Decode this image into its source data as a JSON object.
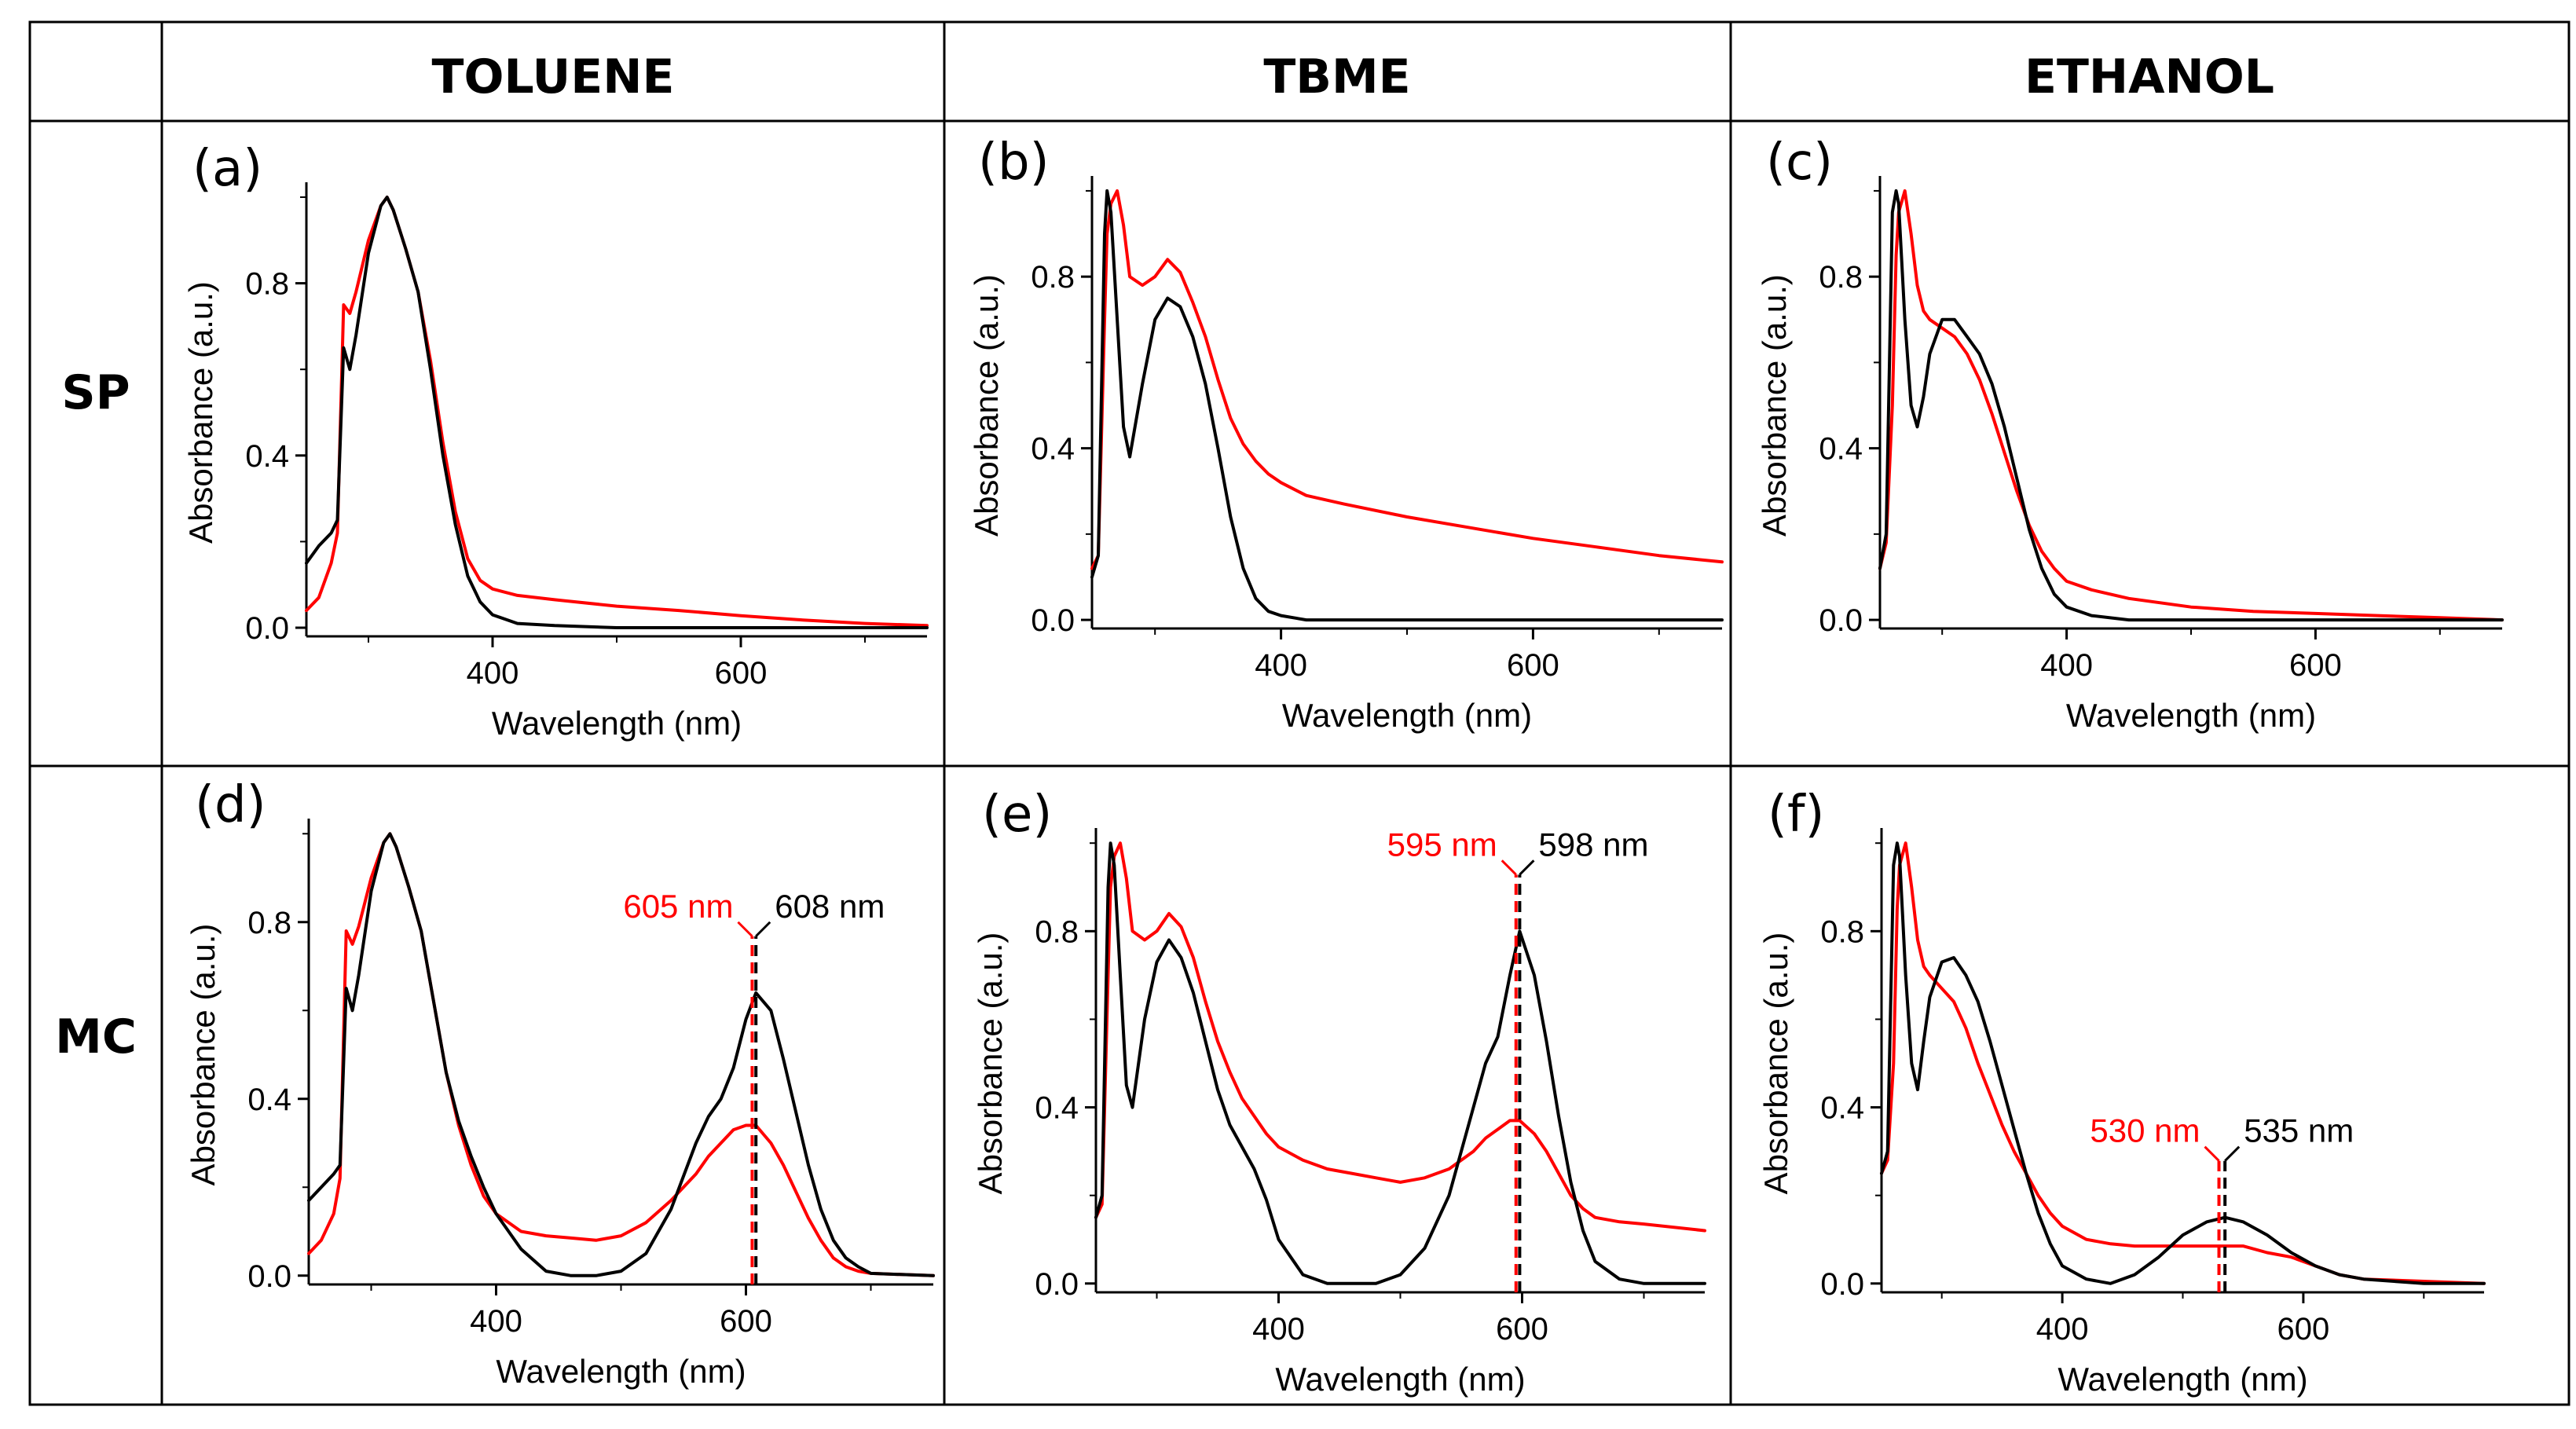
{
  "columns": [
    "TOLUENE",
    "TBME",
    "ETHANOL"
  ],
  "rows": [
    "SP",
    "MC"
  ],
  "colors": {
    "series_black": "#000000",
    "series_red": "#ff0000",
    "grid_line": "#000000"
  },
  "chart_data": [
    {
      "id": "a",
      "panel_label": "(a)",
      "type": "line",
      "xlabel": "Wavelength (nm)",
      "ylabel": "Absorbance (a.u.)",
      "xlim": [
        250,
        750
      ],
      "ylim": [
        -0.02,
        1.02
      ],
      "x_ticks": [
        "400",
        "600"
      ],
      "y_ticks": [
        "0.0",
        "0.4",
        "0.8"
      ],
      "x": [
        250,
        260,
        270,
        275,
        280,
        285,
        290,
        300,
        310,
        315,
        320,
        330,
        340,
        350,
        360,
        370,
        380,
        390,
        400,
        420,
        450,
        500,
        550,
        600,
        650,
        700,
        750
      ],
      "series": [
        {
          "name": "black",
          "color": "#000000",
          "values": [
            0.15,
            0.19,
            0.22,
            0.25,
            0.65,
            0.6,
            0.68,
            0.87,
            0.98,
            1.0,
            0.97,
            0.88,
            0.78,
            0.6,
            0.4,
            0.24,
            0.12,
            0.06,
            0.03,
            0.01,
            0.005,
            0.0,
            0.0,
            0.0,
            0.0,
            0.0,
            0.0
          ]
        },
        {
          "name": "red",
          "color": "#ff0000",
          "values": [
            0.04,
            0.07,
            0.15,
            0.22,
            0.75,
            0.73,
            0.78,
            0.9,
            0.98,
            1.0,
            0.97,
            0.88,
            0.78,
            0.62,
            0.43,
            0.27,
            0.16,
            0.11,
            0.09,
            0.075,
            0.065,
            0.05,
            0.04,
            0.028,
            0.018,
            0.01,
            0.005
          ]
        }
      ],
      "annotations": []
    },
    {
      "id": "b",
      "panel_label": "(b)",
      "type": "line",
      "xlabel": "Wavelength (nm)",
      "ylabel": "Absorbance (a.u.)",
      "xlim": [
        250,
        750
      ],
      "ylim": [
        -0.02,
        1.02
      ],
      "x_ticks": [
        "400",
        "600"
      ],
      "y_ticks": [
        "0.0",
        "0.4",
        "0.8"
      ],
      "x": [
        250,
        255,
        260,
        262,
        265,
        270,
        275,
        280,
        290,
        300,
        310,
        320,
        330,
        340,
        350,
        360,
        370,
        380,
        390,
        400,
        420,
        450,
        500,
        550,
        600,
        650,
        700,
        750
      ],
      "series": [
        {
          "name": "black",
          "color": "#000000",
          "values": [
            0.1,
            0.15,
            0.9,
            1.0,
            0.95,
            0.7,
            0.45,
            0.38,
            0.55,
            0.7,
            0.75,
            0.73,
            0.66,
            0.55,
            0.4,
            0.24,
            0.12,
            0.05,
            0.02,
            0.01,
            0.0,
            0.0,
            0.0,
            0.0,
            0.0,
            0.0,
            0.0,
            0.0
          ]
        },
        {
          "name": "red",
          "color": "#ff0000",
          "values": [
            0.12,
            0.15,
            0.7,
            0.9,
            0.97,
            1.0,
            0.92,
            0.8,
            0.78,
            0.8,
            0.84,
            0.81,
            0.74,
            0.66,
            0.56,
            0.47,
            0.41,
            0.37,
            0.34,
            0.32,
            0.29,
            0.27,
            0.24,
            0.215,
            0.19,
            0.17,
            0.15,
            0.135
          ]
        }
      ],
      "annotations": []
    },
    {
      "id": "c",
      "panel_label": "(c)",
      "type": "line",
      "xlabel": "Wavelength (nm)",
      "ylabel": "Absorbance (a.u.)",
      "xlim": [
        250,
        750
      ],
      "ylim": [
        -0.02,
        1.02
      ],
      "x_ticks": [
        "400",
        "600"
      ],
      "y_ticks": [
        "0.0",
        "0.4",
        "0.8"
      ],
      "x": [
        250,
        255,
        260,
        263,
        265,
        270,
        275,
        280,
        285,
        290,
        300,
        310,
        320,
        330,
        340,
        350,
        360,
        370,
        380,
        390,
        400,
        420,
        450,
        500,
        550,
        600,
        650,
        700,
        750
      ],
      "series": [
        {
          "name": "black",
          "color": "#000000",
          "values": [
            0.12,
            0.2,
            0.95,
            1.0,
            0.97,
            0.7,
            0.5,
            0.45,
            0.52,
            0.62,
            0.7,
            0.7,
            0.66,
            0.62,
            0.55,
            0.45,
            0.33,
            0.21,
            0.12,
            0.06,
            0.03,
            0.01,
            0.0,
            0.0,
            0.0,
            0.0,
            0.0,
            0.0,
            0.0
          ]
        },
        {
          "name": "red",
          "color": "#ff0000",
          "values": [
            0.12,
            0.18,
            0.5,
            0.85,
            0.95,
            1.0,
            0.9,
            0.78,
            0.72,
            0.7,
            0.68,
            0.66,
            0.62,
            0.56,
            0.48,
            0.39,
            0.3,
            0.22,
            0.16,
            0.12,
            0.09,
            0.07,
            0.05,
            0.03,
            0.02,
            0.015,
            0.01,
            0.005,
            0.0
          ]
        }
      ],
      "annotations": []
    },
    {
      "id": "d",
      "panel_label": "(d)",
      "type": "line",
      "xlabel": "Wavelength (nm)",
      "ylabel": "Absorbance (a.u.)",
      "xlim": [
        250,
        750
      ],
      "ylim": [
        -0.02,
        1.02
      ],
      "x_ticks": [
        "400",
        "600"
      ],
      "y_ticks": [
        "0.0",
        "0.4",
        "0.8"
      ],
      "x": [
        250,
        260,
        270,
        275,
        280,
        285,
        290,
        300,
        310,
        315,
        320,
        330,
        340,
        350,
        360,
        370,
        380,
        390,
        400,
        420,
        440,
        460,
        480,
        500,
        520,
        540,
        560,
        570,
        580,
        590,
        600,
        608,
        620,
        630,
        640,
        650,
        660,
        670,
        680,
        690,
        700,
        750
      ],
      "series": [
        {
          "name": "black",
          "color": "#000000",
          "values": [
            0.17,
            0.2,
            0.23,
            0.25,
            0.65,
            0.6,
            0.68,
            0.87,
            0.98,
            1.0,
            0.97,
            0.88,
            0.78,
            0.62,
            0.46,
            0.35,
            0.27,
            0.2,
            0.14,
            0.06,
            0.01,
            0.0,
            0.0,
            0.01,
            0.05,
            0.15,
            0.3,
            0.36,
            0.4,
            0.47,
            0.58,
            0.64,
            0.6,
            0.49,
            0.37,
            0.25,
            0.15,
            0.08,
            0.04,
            0.02,
            0.005,
            0.0
          ]
        },
        {
          "name": "red",
          "color": "#ff0000",
          "values": [
            0.05,
            0.08,
            0.14,
            0.22,
            0.78,
            0.75,
            0.79,
            0.9,
            0.98,
            1.0,
            0.97,
            0.88,
            0.78,
            0.62,
            0.46,
            0.34,
            0.25,
            0.18,
            0.14,
            0.1,
            0.09,
            0.085,
            0.08,
            0.09,
            0.12,
            0.17,
            0.23,
            0.27,
            0.3,
            0.33,
            0.34,
            0.34,
            0.3,
            0.25,
            0.19,
            0.13,
            0.08,
            0.04,
            0.02,
            0.01,
            0.005,
            0.0
          ]
        }
      ],
      "annotations": [
        {
          "text": "605 nm",
          "x": 605,
          "color": "#ff0000",
          "side": "left"
        },
        {
          "text": "608 nm",
          "x": 608,
          "color": "#000000",
          "side": "right"
        }
      ]
    },
    {
      "id": "e",
      "panel_label": "(e)",
      "type": "line",
      "xlabel": "Wavelength (nm)",
      "ylabel": "Absorbance (a.u.)",
      "xlim": [
        250,
        750
      ],
      "ylim": [
        -0.02,
        1.02
      ],
      "x_ticks": [
        "400",
        "600"
      ],
      "y_ticks": [
        "0.0",
        "0.4",
        "0.8"
      ],
      "x": [
        250,
        255,
        260,
        262,
        265,
        270,
        275,
        280,
        290,
        300,
        310,
        320,
        330,
        340,
        350,
        360,
        370,
        380,
        390,
        400,
        420,
        440,
        460,
        480,
        500,
        520,
        540,
        560,
        570,
        580,
        590,
        598,
        610,
        620,
        630,
        640,
        650,
        660,
        680,
        700,
        750
      ],
      "series": [
        {
          "name": "black",
          "color": "#000000",
          "values": [
            0.15,
            0.2,
            0.9,
            1.0,
            0.95,
            0.7,
            0.45,
            0.4,
            0.6,
            0.73,
            0.78,
            0.74,
            0.66,
            0.55,
            0.44,
            0.36,
            0.31,
            0.26,
            0.19,
            0.1,
            0.02,
            0.0,
            0.0,
            0.0,
            0.02,
            0.08,
            0.2,
            0.4,
            0.5,
            0.56,
            0.7,
            0.8,
            0.7,
            0.55,
            0.38,
            0.23,
            0.12,
            0.05,
            0.01,
            0.0,
            0.0
          ]
        },
        {
          "name": "red",
          "color": "#ff0000",
          "values": [
            0.15,
            0.18,
            0.7,
            0.9,
            0.97,
            1.0,
            0.92,
            0.8,
            0.78,
            0.8,
            0.84,
            0.81,
            0.74,
            0.64,
            0.55,
            0.48,
            0.42,
            0.38,
            0.34,
            0.31,
            0.28,
            0.26,
            0.25,
            0.24,
            0.23,
            0.24,
            0.26,
            0.3,
            0.33,
            0.35,
            0.37,
            0.37,
            0.34,
            0.3,
            0.25,
            0.2,
            0.17,
            0.15,
            0.14,
            0.135,
            0.12
          ]
        }
      ],
      "annotations": [
        {
          "text": "595 nm",
          "x": 595,
          "color": "#ff0000",
          "side": "left"
        },
        {
          "text": "598 nm",
          "x": 598,
          "color": "#000000",
          "side": "right"
        }
      ]
    },
    {
      "id": "f",
      "panel_label": "(f)",
      "type": "line",
      "xlabel": "Wavelength (nm)",
      "ylabel": "Absorbance (a.u.)",
      "xlim": [
        250,
        750
      ],
      "ylim": [
        -0.02,
        1.02
      ],
      "x_ticks": [
        "400",
        "600"
      ],
      "y_ticks": [
        "0.0",
        "0.4",
        "0.8"
      ],
      "x": [
        250,
        255,
        260,
        263,
        265,
        270,
        275,
        280,
        285,
        290,
        300,
        310,
        320,
        330,
        340,
        350,
        360,
        370,
        380,
        390,
        400,
        420,
        440,
        460,
        480,
        500,
        520,
        535,
        550,
        570,
        590,
        610,
        630,
        650,
        700,
        750
      ],
      "series": [
        {
          "name": "black",
          "color": "#000000",
          "values": [
            0.25,
            0.3,
            0.95,
            1.0,
            0.97,
            0.7,
            0.5,
            0.44,
            0.55,
            0.65,
            0.73,
            0.74,
            0.7,
            0.64,
            0.55,
            0.45,
            0.35,
            0.25,
            0.16,
            0.09,
            0.04,
            0.01,
            0.0,
            0.02,
            0.06,
            0.11,
            0.14,
            0.15,
            0.14,
            0.11,
            0.07,
            0.04,
            0.02,
            0.01,
            0.0,
            0.0
          ]
        },
        {
          "name": "red",
          "color": "#ff0000",
          "values": [
            0.25,
            0.28,
            0.5,
            0.85,
            0.95,
            1.0,
            0.9,
            0.78,
            0.72,
            0.7,
            0.67,
            0.64,
            0.58,
            0.5,
            0.43,
            0.36,
            0.3,
            0.25,
            0.2,
            0.16,
            0.13,
            0.1,
            0.09,
            0.085,
            0.085,
            0.085,
            0.085,
            0.085,
            0.085,
            0.07,
            0.06,
            0.04,
            0.02,
            0.01,
            0.005,
            0.0
          ]
        }
      ],
      "annotations": [
        {
          "text": "530 nm",
          "x": 530,
          "color": "#ff0000",
          "side": "left"
        },
        {
          "text": "535 nm",
          "x": 535,
          "color": "#000000",
          "side": "right"
        }
      ]
    }
  ]
}
